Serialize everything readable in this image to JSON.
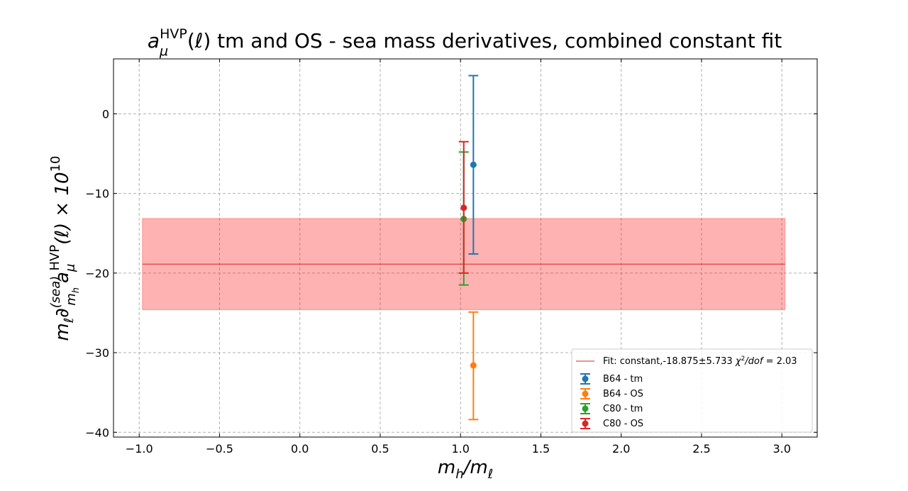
{
  "chart_data": {
    "type": "scatter",
    "title": "a_μ^HVP(ℓ) tm and OS - sea mass derivatives, combined constant fit",
    "title_parts": {
      "a": "a",
      "mu": "μ",
      "sup": "HVP",
      "paren": "(ℓ)",
      "rest": " tm and OS - sea mass derivatives, combined constant fit"
    },
    "xlabel": "m_h/m_ℓ",
    "xlabel_parts": {
      "mh": "m",
      "h": "h",
      "slash": "/m",
      "l": "ℓ"
    },
    "ylabel": "m_ℓ ∂^(sea)_{m_h} a_μ^HVP(ℓ) × 10^10",
    "ylabel_parts": {
      "m": "m",
      "l": "ℓ",
      "d": "∂",
      "sea": "(sea)",
      "mh": "m",
      "h": "h",
      "a": "a",
      "mu": "μ",
      "hvp": "HVP",
      "paren": "(ℓ) × 10",
      "exp": "10"
    },
    "xlim": [
      -1.16,
      3.22
    ],
    "ylim": [
      -40.6,
      6.9
    ],
    "xticks": [
      -1.0,
      -0.5,
      0.0,
      0.5,
      1.0,
      1.5,
      2.0,
      2.5,
      3.0
    ],
    "xtick_labels": [
      "−1.0",
      "−0.5",
      "0.0",
      "0.5",
      "1.0",
      "1.5",
      "2.0",
      "2.5",
      "3.0"
    ],
    "yticks": [
      0,
      -10,
      -20,
      -30,
      -40
    ],
    "ytick_labels": [
      "0",
      "−10",
      "−20",
      "−30",
      "−40"
    ],
    "grid": true,
    "legend_position": "lower-right",
    "fit": {
      "label": "Fit: constant,-18.875±5.733 χ²/dof = 2.03",
      "label_main": "Fit: constant,-18.875±5.733 ",
      "label_chi": "χ",
      "label_sup": "2",
      "label_dof": "/dof",
      "label_val": " = 2.03",
      "value": -18.875,
      "error": 5.733,
      "x_range": [
        -0.98,
        3.02
      ],
      "color": "#d62728",
      "band_color": "#ff0000"
    },
    "series": [
      {
        "name": "B64 - tm",
        "x": 1.08,
        "y": -6.4,
        "yerr_low": -17.6,
        "yerr_high": 4.8,
        "color": "#1f77b4"
      },
      {
        "name": "B64 - OS",
        "x": 1.08,
        "y": -31.6,
        "yerr_low": -38.4,
        "yerr_high": -24.9,
        "color": "#ff7f0e"
      },
      {
        "name": "C80 - tm",
        "x": 1.02,
        "y": -13.2,
        "yerr_low": -21.5,
        "yerr_high": -4.8,
        "color": "#2ca02c"
      },
      {
        "name": "C80 - OS",
        "x": 1.02,
        "y": -11.8,
        "yerr_low": -20.0,
        "yerr_high": -3.5,
        "color": "#d62728"
      }
    ]
  }
}
